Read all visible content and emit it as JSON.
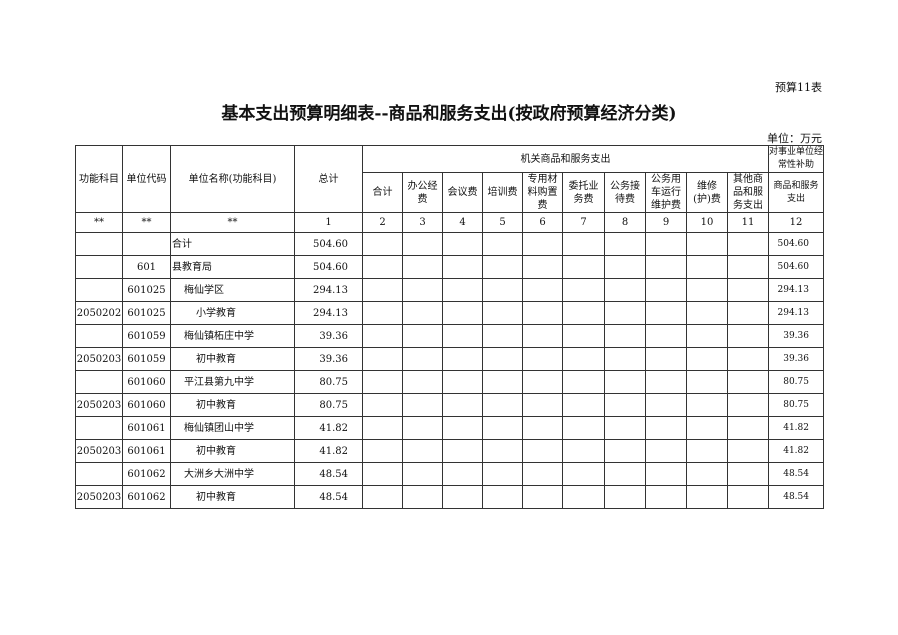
{
  "table_no": "预算11表",
  "title": "基本支出预算明细表--商品和服务支出(按政府预算经济分类)",
  "unit": "单位：万元",
  "headers": {
    "func": "功能科目",
    "code": "单位代码",
    "name": "单位名称(功能科目)",
    "total": "总计",
    "group1": "机关商品和服务支出",
    "group2": "对事业单位经常性补助",
    "cols": [
      "合计",
      "办公经费",
      "会议费",
      "培训费",
      "专用材料购置费",
      "委托业务费",
      "公务接待费",
      "公务用车运行维护费",
      "维修(护)费",
      "其他商品和服务支出",
      "商品和服务支出"
    ],
    "index": [
      "**",
      "**",
      "**",
      "1",
      "2",
      "3",
      "4",
      "5",
      "6",
      "7",
      "8",
      "9",
      "10",
      "11",
      "12"
    ]
  },
  "rows": [
    {
      "func": "",
      "code": "",
      "name": "合计",
      "level": 0,
      "total": "504.60",
      "c12": "504.60"
    },
    {
      "func": "",
      "code": "601",
      "name": "县教育局",
      "level": 0,
      "total": "504.60",
      "c12": "504.60"
    },
    {
      "func": "",
      "code": "601025",
      "name": "梅仙学区",
      "level": 1,
      "total": "294.13",
      "c12": "294.13"
    },
    {
      "func": "2050202",
      "code": "601025",
      "name": "小学教育",
      "level": 2,
      "total": "294.13",
      "c12": "294.13"
    },
    {
      "func": "",
      "code": "601059",
      "name": "梅仙镇柘庄中学",
      "level": 1,
      "total": "39.36",
      "c12": "39.36"
    },
    {
      "func": "2050203",
      "code": "601059",
      "name": "初中教育",
      "level": 2,
      "total": "39.36",
      "c12": "39.36"
    },
    {
      "func": "",
      "code": "601060",
      "name": "平江县第九中学",
      "level": 1,
      "total": "80.75",
      "c12": "80.75"
    },
    {
      "func": "2050203",
      "code": "601060",
      "name": "初中教育",
      "level": 2,
      "total": "80.75",
      "c12": "80.75"
    },
    {
      "func": "",
      "code": "601061",
      "name": "梅仙镇团山中学",
      "level": 1,
      "total": "41.82",
      "c12": "41.82"
    },
    {
      "func": "2050203",
      "code": "601061",
      "name": "初中教育",
      "level": 2,
      "total": "41.82",
      "c12": "41.82"
    },
    {
      "func": "",
      "code": "601062",
      "name": "大洲乡大洲中学",
      "level": 1,
      "total": "48.54",
      "c12": "48.54"
    },
    {
      "func": "2050203",
      "code": "601062",
      "name": "初中教育",
      "level": 2,
      "total": "48.54",
      "c12": "48.54"
    }
  ]
}
